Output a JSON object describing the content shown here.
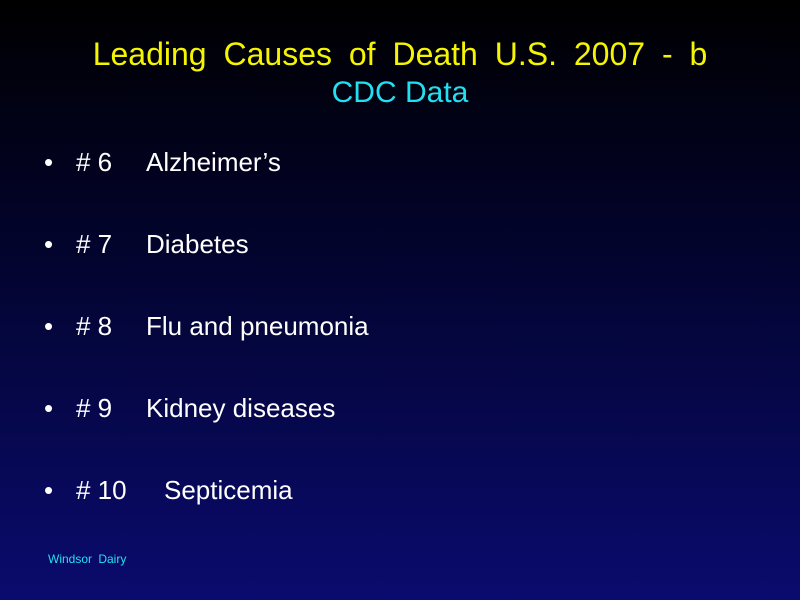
{
  "title": {
    "line1": "Leading  Causes  of  Death  U.S.  2007  - b",
    "line2": "CDC Data"
  },
  "bullets": [
    {
      "symbol": "•",
      "rank": "# 6",
      "cause": "Alzheimer’s"
    },
    {
      "symbol": "•",
      "rank": "# 7",
      "cause": "Diabetes"
    },
    {
      "symbol": "•",
      "rank": "# 8",
      "cause": "Flu and pneumonia"
    },
    {
      "symbol": "•",
      "rank": "# 9",
      "cause": "Kidney diseases"
    },
    {
      "symbol": "•",
      "rank": "# 10",
      "cause": "Septicemia"
    }
  ],
  "footer": "Windsor  Dairy",
  "colors": {
    "title_primary": "#f5f500",
    "title_secondary": "#22e0f0",
    "body_text": "#ffffff",
    "footer_text": "#22e0f0",
    "background_top": "#000000",
    "background_bottom": "#0a0b6e"
  }
}
